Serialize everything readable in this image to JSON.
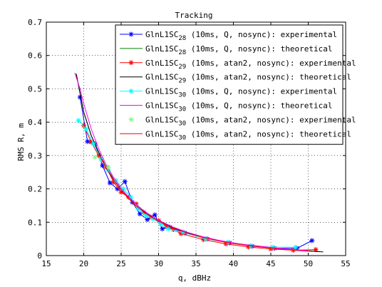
{
  "chart_data": {
    "type": "line",
    "title": "Tracking",
    "xlabel": "q, dBHz",
    "ylabel": "RMS R, m",
    "xlim": [
      15,
      55
    ],
    "ylim": [
      0,
      0.7
    ],
    "xticks": [
      "15",
      "20",
      "25",
      "30",
      "35",
      "40",
      "45",
      "50",
      "55"
    ],
    "yticks": [
      "0",
      "0.1",
      "0.2",
      "0.3",
      "0.4",
      "0.5",
      "0.6",
      "0.7"
    ],
    "grid": true,
    "legend_position": "top-right",
    "series": [
      {
        "name": "GlnL1SC28 (10ms, Q, nosync): experimental",
        "legend": {
          "base": "GlnL1SC",
          "sub": "28",
          "rest": " (10ms, Q, nosync): experimental"
        },
        "color": "#0000ff",
        "marker": "asterisk",
        "line": true,
        "x": [
          19.5,
          20.5,
          21.5,
          22.5,
          23.5,
          24.5,
          25.5,
          26.5,
          27.5,
          28.5,
          29.5,
          30.5,
          31.5,
          33.5,
          36.5,
          39.5,
          42.5,
          45.5,
          48.5,
          50.5
        ],
        "y": [
          0.475,
          0.342,
          0.335,
          0.27,
          0.218,
          0.2,
          0.222,
          0.16,
          0.125,
          0.108,
          0.122,
          0.08,
          0.085,
          0.068,
          0.05,
          0.038,
          0.028,
          0.022,
          0.022,
          0.045
        ]
      },
      {
        "name": "GlnL1SC28 (10ms, Q, nosync): theoretical",
        "legend": {
          "base": "GlnL1SC",
          "sub": "28",
          "rest": " (10ms, Q, nosync): theoretical"
        },
        "color": "#008000",
        "marker": "none",
        "line": true,
        "x": [
          19,
          20,
          21,
          22,
          23,
          24,
          25,
          26,
          27,
          28,
          29,
          30,
          32,
          34,
          36,
          38,
          40,
          42,
          44,
          46,
          48,
          50,
          51.5
        ],
        "y": [
          0.545,
          0.43,
          0.36,
          0.31,
          0.265,
          0.228,
          0.197,
          0.172,
          0.15,
          0.132,
          0.117,
          0.104,
          0.083,
          0.067,
          0.054,
          0.045,
          0.037,
          0.031,
          0.026,
          0.021,
          0.017,
          0.014,
          0.012
        ]
      },
      {
        "name": "GlnL1SC29 (10ms, atan2, nosync): experimental",
        "legend": {
          "base": "GlnL1SC",
          "sub": "29",
          "rest": " (10ms, atan2, nosync): experimental"
        },
        "color": "#ff0000",
        "marker": "asterisk",
        "line": true,
        "x": [
          20,
          21,
          22,
          23,
          24,
          25,
          26,
          27,
          28,
          29,
          30,
          31,
          32,
          33,
          36,
          39,
          42,
          45,
          48,
          51
        ],
        "y": [
          0.39,
          0.34,
          0.3,
          0.265,
          0.22,
          0.19,
          0.175,
          0.155,
          0.13,
          0.115,
          0.105,
          0.088,
          0.078,
          0.066,
          0.048,
          0.035,
          0.026,
          0.02,
          0.016,
          0.018
        ]
      },
      {
        "name": "GlnL1SC29 (10ms, atan2, nosync): theoretical",
        "legend": {
          "base": "GlnL1SC",
          "sub": "29",
          "rest": " (10ms, atan2, nosync): theoretical"
        },
        "color": "#000000",
        "marker": "none",
        "line": true,
        "x": [
          19,
          20,
          21,
          22,
          23,
          24,
          25,
          26,
          27,
          28,
          29,
          30,
          32,
          34,
          36,
          38,
          40,
          42,
          44,
          46,
          48,
          50,
          52
        ],
        "y": [
          0.545,
          0.43,
          0.36,
          0.31,
          0.265,
          0.228,
          0.197,
          0.172,
          0.15,
          0.132,
          0.117,
          0.104,
          0.083,
          0.067,
          0.054,
          0.045,
          0.037,
          0.031,
          0.026,
          0.021,
          0.017,
          0.014,
          0.011
        ]
      },
      {
        "name": "GlnL1SC30 (10ms, Q, nosync): experimental",
        "legend": {
          "base": "GlnL1SC",
          "sub": "30",
          "rest": " (10ms, Q, nosync): experimental"
        },
        "color": "#00ffff",
        "marker": "asterisk",
        "line": true,
        "x": [
          19.3,
          20.3,
          21.3,
          22.3,
          23.3,
          24.3,
          25.3,
          26.3,
          27.3,
          28.3,
          29.3,
          30.3,
          31.3,
          33.3,
          36.3,
          39.3,
          42.3,
          45.3,
          48.3
        ],
        "y": [
          0.405,
          0.38,
          0.335,
          0.29,
          0.255,
          0.225,
          0.2,
          0.175,
          0.14,
          0.12,
          0.11,
          0.095,
          0.08,
          0.07,
          0.05,
          0.04,
          0.03,
          0.025,
          0.025
        ]
      },
      {
        "name": "GlnL1SC30 (10ms, Q, nosync): theoretical",
        "legend": {
          "base": "GlnL1SC",
          "sub": "30",
          "rest": " (10ms, Q, nosync): theoretical"
        },
        "color": "#ff00ff",
        "marker": "none",
        "line": true,
        "x": [
          18.8,
          19.5,
          20,
          21,
          22,
          23,
          24,
          25,
          26,
          27,
          28,
          29,
          30,
          32,
          34,
          36,
          38,
          40,
          42,
          44,
          46,
          48,
          50
        ],
        "y": [
          0.548,
          0.5,
          0.455,
          0.38,
          0.32,
          0.272,
          0.234,
          0.202,
          0.176,
          0.154,
          0.135,
          0.12,
          0.106,
          0.085,
          0.069,
          0.056,
          0.046,
          0.038,
          0.032,
          0.027,
          0.022,
          0.018,
          0.015
        ]
      },
      {
        "name": "GlnL1SC30 (10ms, atan2, nosync): experimental",
        "legend": {
          "base": "GlnL1SC",
          "sub": "30",
          "rest": " (10ms, atan2, nosync): experimental"
        },
        "color": "#80ff80",
        "marker": "asterisk",
        "line": false,
        "x": [
          21.5,
          23.3
        ],
        "y": [
          0.295,
          0.265
        ]
      },
      {
        "name": "GlnL1SC30 (10ms, atan2, nosync): theoretical",
        "legend": {
          "base": "GlnL1SC",
          "sub": "30",
          "rest": " (10ms, atan2, nosync): theoretical"
        },
        "color": "#ff0000",
        "marker": "none",
        "line": true,
        "x": [
          22,
          23,
          24,
          25,
          26,
          27,
          28,
          29,
          30,
          32,
          34,
          36,
          38,
          40,
          42,
          44,
          46,
          48,
          50
        ],
        "y": [
          0.305,
          0.262,
          0.226,
          0.196,
          0.171,
          0.149,
          0.131,
          0.116,
          0.103,
          0.082,
          0.066,
          0.054,
          0.044,
          0.036,
          0.03,
          0.025,
          0.02,
          0.016,
          0.013
        ]
      }
    ]
  }
}
